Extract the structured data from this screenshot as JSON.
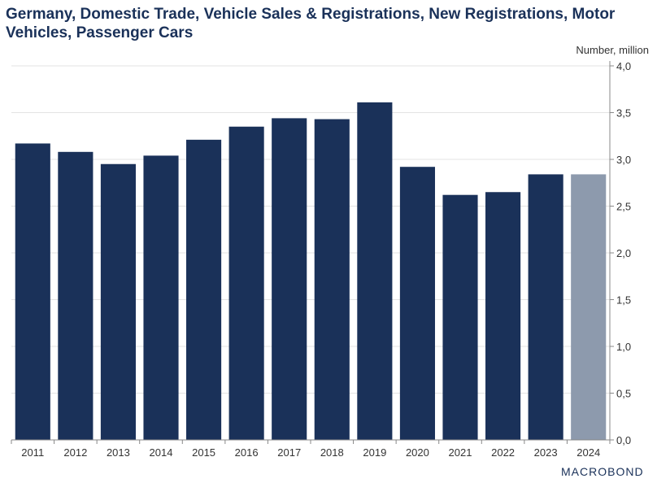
{
  "chart_data": {
    "type": "bar",
    "title": "Germany, Domestic Trade, Vehicle Sales & Registrations, New Registrations, Motor Vehicles, Passenger Cars",
    "xlabel": "",
    "ylabel": "Number, million",
    "ylim": [
      0,
      4.0
    ],
    "yticks": [
      "0,0",
      "0,5",
      "1,0",
      "1,5",
      "2,0",
      "2,5",
      "3,0",
      "3,5",
      "4,0"
    ],
    "categories": [
      "2011",
      "2012",
      "2013",
      "2014",
      "2015",
      "2016",
      "2017",
      "2018",
      "2019",
      "2020",
      "2021",
      "2022",
      "2023",
      "2024"
    ],
    "values": [
      3.17,
      3.08,
      2.95,
      3.04,
      3.21,
      3.35,
      3.44,
      3.43,
      3.61,
      2.92,
      2.62,
      2.65,
      2.84,
      2.84
    ],
    "colors": [
      "#1a3159",
      "#1a3159",
      "#1a3159",
      "#1a3159",
      "#1a3159",
      "#1a3159",
      "#1a3159",
      "#1a3159",
      "#1a3159",
      "#1a3159",
      "#1a3159",
      "#1a3159",
      "#1a3159",
      "#8d9aad"
    ],
    "grid": true,
    "axis_position": "right"
  },
  "brand": "MACROBOND"
}
